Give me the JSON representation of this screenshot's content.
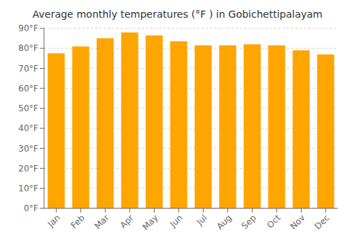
{
  "chart_data": {
    "type": "bar",
    "title": "Average monthly temperatures (°F ) in Gobichettipalayam",
    "categories": [
      "Jan",
      "Feb",
      "Mar",
      "Apr",
      "May",
      "Jun",
      "Jul",
      "Aug",
      "Sep",
      "Oct",
      "Nov",
      "Dec"
    ],
    "values": [
      77.5,
      81.0,
      85.0,
      88.0,
      86.5,
      83.5,
      81.5,
      81.5,
      82.0,
      81.5,
      79.0,
      77.0
    ],
    "color": "#FFA500",
    "ylim": [
      0,
      90
    ],
    "yticks": [
      {
        "value": 0,
        "label": "0°F"
      },
      {
        "value": 10,
        "label": "10°F"
      },
      {
        "value": 20,
        "label": "20°F"
      },
      {
        "value": 30,
        "label": "30°F"
      },
      {
        "value": 40,
        "label": "40°F"
      },
      {
        "value": 50,
        "label": "50°F"
      },
      {
        "value": 60,
        "label": "60°F"
      },
      {
        "value": 70,
        "label": "70°F"
      },
      {
        "value": 80,
        "label": "80°F"
      },
      {
        "value": 90,
        "label": "90°F"
      }
    ],
    "grid": true
  }
}
